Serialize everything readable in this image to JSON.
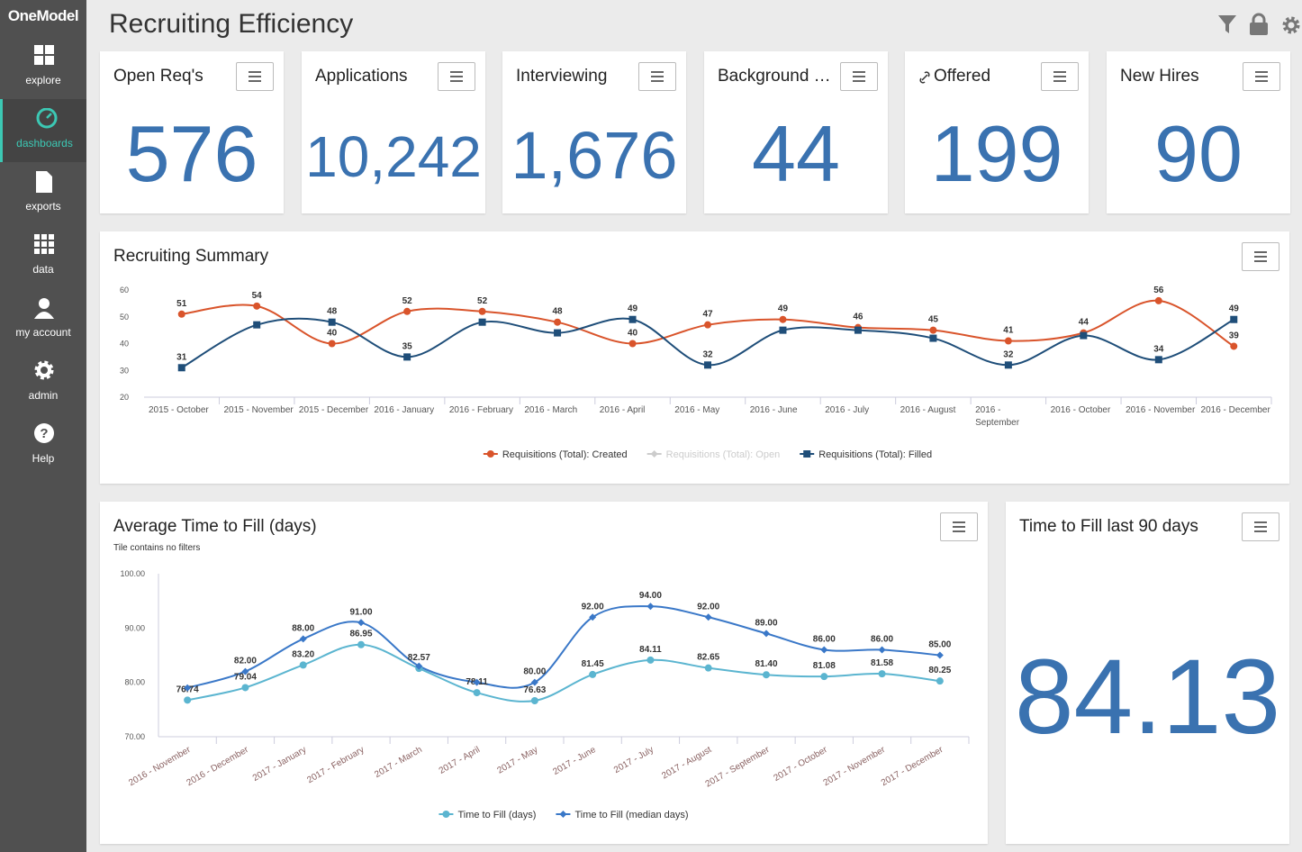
{
  "sidebar": {
    "logo": "OneModel",
    "active": 1,
    "items": [
      {
        "label": "explore",
        "icon": "grid4"
      },
      {
        "label": "dashboards",
        "icon": "gauge"
      },
      {
        "label": "exports",
        "icon": "file"
      },
      {
        "label": "data",
        "icon": "grid9"
      },
      {
        "label": "my account",
        "icon": "user"
      },
      {
        "label": "admin",
        "icon": "gear"
      },
      {
        "label": "Help",
        "icon": "help"
      }
    ]
  },
  "header": {
    "title": "Recruiting Efficiency"
  },
  "kpis": [
    {
      "title": "Open Req's",
      "value": "576",
      "size": 88
    },
    {
      "title": "Applications",
      "value": "10,242",
      "size": 64
    },
    {
      "title": "Interviewing",
      "value": "1,676",
      "size": 74
    },
    {
      "title": "Background …",
      "value": "44",
      "size": 88
    },
    {
      "title": "Offered",
      "value": "199",
      "size": 88,
      "link_icon": true
    },
    {
      "title": "New Hires",
      "value": "90",
      "size": 88
    }
  ],
  "chart_data": [
    {
      "type": "line",
      "title": "Recruiting Summary",
      "categories": [
        "2015 - October",
        "2015 - November",
        "2015 - December",
        "2016 - January",
        "2016 - February",
        "2016 - March",
        "2016 - April",
        "2016 - May",
        "2016 - June",
        "2016 - July",
        "2016 - August",
        "2016 - September",
        "2016 - October",
        "2016 - November",
        "2016 - December"
      ],
      "series": [
        {
          "name": "Requisitions (Total): Created",
          "color": "#d9542b",
          "marker": "circle",
          "values": [
            51,
            54,
            40,
            52,
            52,
            48,
            40,
            47,
            49,
            46,
            45,
            41,
            44,
            56,
            39
          ],
          "value_labels": [
            "51",
            "54",
            "40",
            "52",
            "52",
            "48",
            "40",
            "47",
            "49",
            "46",
            "45",
            "41",
            "44",
            "56",
            "39"
          ]
        },
        {
          "name": "Requisitions (Total): Open",
          "color": "#cccccc",
          "marker": "diamond",
          "hidden": true
        },
        {
          "name": "Requisitions (Total): Filled",
          "color": "#1f4e79",
          "marker": "square",
          "values": [
            31,
            47,
            48,
            35,
            48,
            44,
            49,
            32,
            45,
            45,
            42,
            32,
            43,
            34,
            49
          ],
          "value_labels": [
            "31",
            null,
            "48",
            "35",
            null,
            null,
            "49",
            "32",
            null,
            null,
            null,
            "32",
            null,
            "34",
            "49"
          ]
        }
      ],
      "ylim": [
        20,
        60
      ],
      "yticks": [
        20,
        30,
        40,
        50,
        60
      ],
      "legend": "bottom"
    },
    {
      "type": "line",
      "title": "Average Time to Fill (days)",
      "subtitle": "Tile contains no filters",
      "categories": [
        "2016 - November",
        "2016 - December",
        "2017 - January",
        "2017 - February",
        "2017 - March",
        "2017 - April",
        "2017 - May",
        "2017 - June",
        "2017 - July",
        "2017 - August",
        "2017 - September",
        "2017 - October",
        "2017 - November",
        "2017 - December"
      ],
      "series": [
        {
          "name": "Time to Fill (days)",
          "color": "#5bb5d0",
          "marker": "circle",
          "values": [
            76.74,
            79.04,
            83.2,
            86.95,
            82.57,
            78.11,
            76.63,
            81.45,
            84.11,
            82.65,
            81.4,
            81.08,
            81.58,
            80.25
          ],
          "value_labels": [
            "76.74",
            "79.04",
            "83.20",
            "86.95",
            "82.57",
            "78.11",
            "76.63",
            "81.45",
            "84.11",
            "82.65",
            "81.40",
            "81.08",
            "81.58",
            "80.25"
          ]
        },
        {
          "name": "Time to Fill (median days)",
          "color": "#3a78c8",
          "marker": "diamond",
          "values": [
            79,
            82,
            88,
            91,
            83,
            80,
            80,
            92,
            94,
            92,
            89,
            86,
            86,
            85
          ],
          "value_labels": [
            null,
            "82.00",
            "88.00",
            "91.00",
            null,
            null,
            "80.00",
            "92.00",
            "94.00",
            "92.00",
            "89.00",
            "86.00",
            "86.00",
            "85.00"
          ]
        }
      ],
      "ylim": [
        70,
        100
      ],
      "yticks": [
        {
          "value": 70,
          "label": "70.00"
        },
        {
          "value": 80,
          "label": "80.00"
        },
        {
          "value": 90,
          "label": "90.00"
        },
        {
          "value": 100,
          "label": "100.00"
        }
      ],
      "legend": "bottom"
    }
  ],
  "tile": {
    "title": "Time to Fill last 90 days",
    "value": "84.13"
  }
}
